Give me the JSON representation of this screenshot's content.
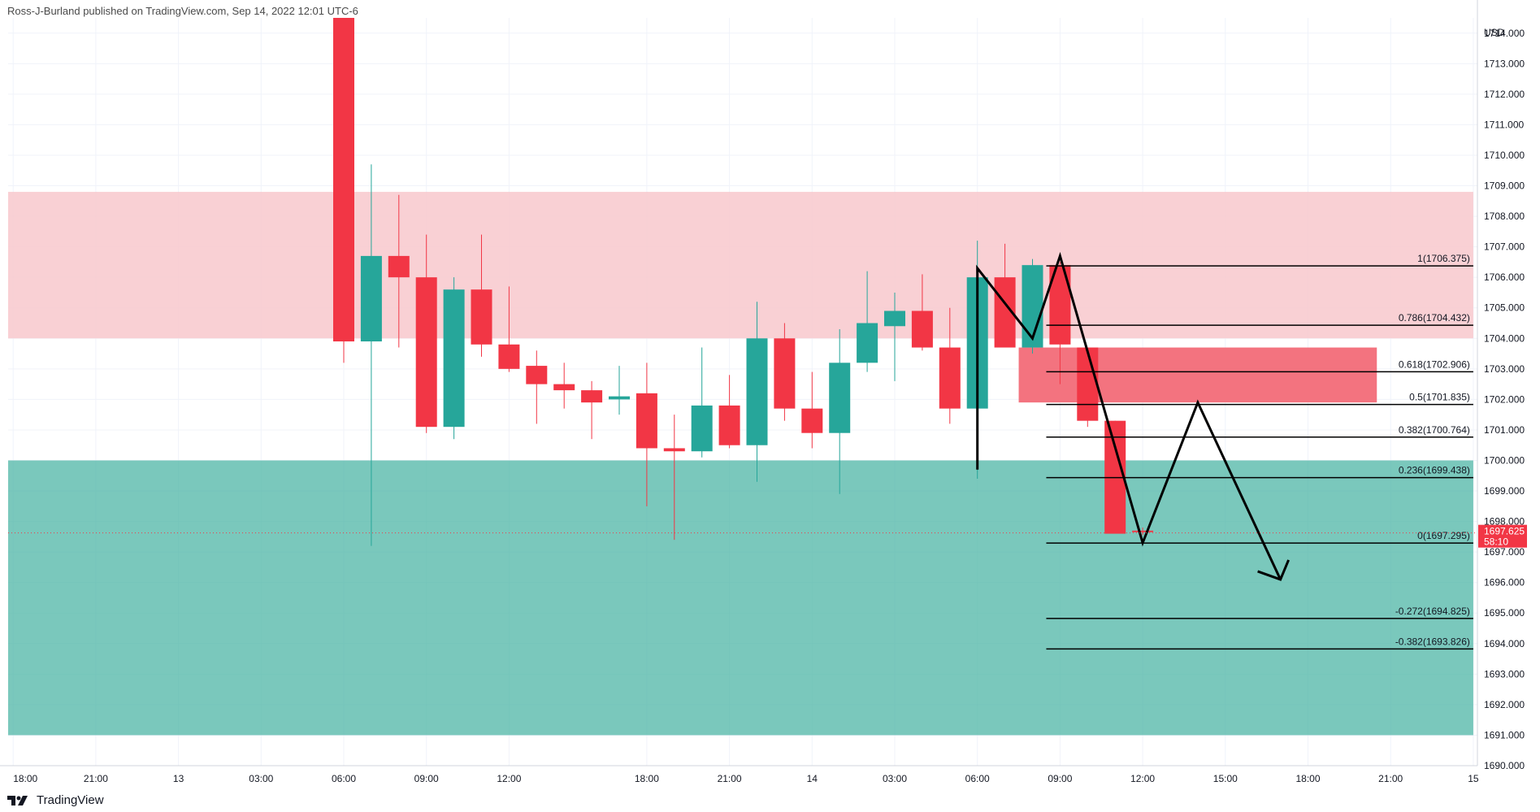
{
  "header": {
    "published_text": "Ross-J-Burland published on TradingView.com, Sep 14, 2022 12:01 UTC-6"
  },
  "footer": {
    "brand": "TradingView"
  },
  "colors": {
    "up": "#26a69a",
    "down": "#f23645",
    "supply_zone": "#f8c8cd",
    "demand_zone": "#4db6a6",
    "fvg_zone": "#f26b78",
    "fib_line": "#000000",
    "price_tag": "#f23645",
    "grid": "#f0f3fa"
  },
  "chart_data": {
    "type": "candlestick",
    "symbol_currency": "USD",
    "ylim": [
      1690,
      1714.5
    ],
    "y_ticks": [
      1690,
      1691,
      1692,
      1693,
      1694,
      1695,
      1696,
      1697,
      1698,
      1699,
      1700,
      1701,
      1702,
      1703,
      1704,
      1705,
      1706,
      1707,
      1708,
      1709,
      1710,
      1711,
      1712,
      1713,
      1714
    ],
    "x_tick_labels": [
      "18:00",
      "21:00",
      "13",
      "03:00",
      "06:00",
      "09:00",
      "12:00",
      "18:00",
      "21:00",
      "14",
      "03:00",
      "06:00",
      "09:00",
      "12:00",
      "15:00",
      "18:00",
      "21:00",
      "15"
    ],
    "x_tick_bar_index": [
      -12,
      -9,
      -6,
      -3,
      0,
      3,
      6,
      11,
      14,
      17,
      20,
      23,
      26,
      29,
      32,
      35,
      38,
      41
    ],
    "candles": [
      {
        "o": 1714.5,
        "h": 1714.5,
        "l": 1703.2,
        "c": 1703.9
      },
      {
        "o": 1703.9,
        "h": 1709.7,
        "l": 1697.2,
        "c": 1706.7
      },
      {
        "o": 1706.7,
        "h": 1708.7,
        "l": 1703.7,
        "c": 1706.0
      },
      {
        "o": 1706.0,
        "h": 1707.4,
        "l": 1700.9,
        "c": 1701.1
      },
      {
        "o": 1701.1,
        "h": 1706.0,
        "l": 1700.7,
        "c": 1705.6
      },
      {
        "o": 1705.6,
        "h": 1707.4,
        "l": 1703.4,
        "c": 1703.8
      },
      {
        "o": 1703.8,
        "h": 1705.7,
        "l": 1702.9,
        "c": 1703.0
      },
      {
        "o": 1703.1,
        "h": 1703.6,
        "l": 1701.2,
        "c": 1702.5
      },
      {
        "o": 1702.5,
        "h": 1703.2,
        "l": 1701.7,
        "c": 1702.3
      },
      {
        "o": 1702.3,
        "h": 1702.6,
        "l": 1700.7,
        "c": 1701.9
      },
      {
        "o": 1702.0,
        "h": 1703.1,
        "l": 1701.5,
        "c": 1702.1
      },
      {
        "o": 1702.2,
        "h": 1703.2,
        "l": 1698.5,
        "c": 1700.4
      },
      {
        "o": 1700.4,
        "h": 1701.5,
        "l": 1697.4,
        "c": 1700.3
      },
      {
        "o": 1700.3,
        "h": 1703.7,
        "l": 1700.1,
        "c": 1701.8
      },
      {
        "o": 1701.8,
        "h": 1702.8,
        "l": 1700.4,
        "c": 1700.5
      },
      {
        "o": 1700.5,
        "h": 1705.2,
        "l": 1699.3,
        "c": 1704.0
      },
      {
        "o": 1704.0,
        "h": 1704.5,
        "l": 1701.3,
        "c": 1701.7
      },
      {
        "o": 1701.7,
        "h": 1702.9,
        "l": 1700.4,
        "c": 1700.9
      },
      {
        "o": 1700.9,
        "h": 1704.3,
        "l": 1698.9,
        "c": 1703.2
      },
      {
        "o": 1703.2,
        "h": 1706.2,
        "l": 1702.9,
        "c": 1704.5
      },
      {
        "o": 1704.4,
        "h": 1705.5,
        "l": 1702.6,
        "c": 1704.9
      },
      {
        "o": 1704.9,
        "h": 1706.1,
        "l": 1703.6,
        "c": 1703.7
      },
      {
        "o": 1703.7,
        "h": 1705.0,
        "l": 1701.2,
        "c": 1701.7
      },
      {
        "o": 1701.7,
        "h": 1707.2,
        "l": 1699.4,
        "c": 1706.0
      },
      {
        "o": 1706.0,
        "h": 1707.1,
        "l": 1703.8,
        "c": 1703.7
      },
      {
        "o": 1703.7,
        "h": 1706.6,
        "l": 1703.5,
        "c": 1706.4
      },
      {
        "o": 1706.4,
        "h": 1706.5,
        "l": 1702.5,
        "c": 1703.8
      },
      {
        "o": 1703.7,
        "h": 1703.7,
        "l": 1701.1,
        "c": 1701.3
      },
      {
        "o": 1701.3,
        "h": 1701.3,
        "l": 1697.7,
        "c": 1697.6
      },
      {
        "o": 1697.7,
        "h": 1697.8,
        "l": 1697.55,
        "c": 1697.65
      }
    ],
    "zones": [
      {
        "kind": "supply",
        "top": 1708.8,
        "bottom": 1704.0,
        "from_bar": -14,
        "to_bar": 41
      },
      {
        "kind": "demand",
        "top": 1700.0,
        "bottom": 1691.0,
        "from_bar": -14,
        "to_bar": 41
      },
      {
        "kind": "fvg",
        "top": 1703.7,
        "bottom": 1701.9,
        "from_bar": 24.5,
        "to_bar": 37.5
      }
    ],
    "fib_from_bar": 25.5,
    "fib_to_bar": 41,
    "fib_levels": [
      {
        "label": "1(1706.375)",
        "price": 1706.375
      },
      {
        "label": "0.786(1704.432)",
        "price": 1704.432
      },
      {
        "label": "0.618(1702.906)",
        "price": 1702.906
      },
      {
        "label": "0.5(1701.835)",
        "price": 1701.835
      },
      {
        "label": "0.382(1700.764)",
        "price": 1700.764
      },
      {
        "label": "0.236(1699.438)",
        "price": 1699.438
      },
      {
        "label": "0(1697.295)",
        "price": 1697.295
      },
      {
        "label": "-0.272(1694.825)",
        "price": 1694.825
      },
      {
        "label": "-0.382(1693.826)",
        "price": 1693.826
      }
    ],
    "projection_path": [
      {
        "bar": 23,
        "price": 1699.7
      },
      {
        "bar": 23,
        "price": 1706.3
      },
      {
        "bar": 25,
        "price": 1704.0
      },
      {
        "bar": 26,
        "price": 1706.7
      },
      {
        "bar": 29,
        "price": 1697.3
      },
      {
        "bar": 31,
        "price": 1701.9
      },
      {
        "bar": 34,
        "price": 1696.1
      }
    ],
    "current_price": {
      "value": 1697.625,
      "label": "1697.625",
      "countdown": "58:10"
    }
  }
}
